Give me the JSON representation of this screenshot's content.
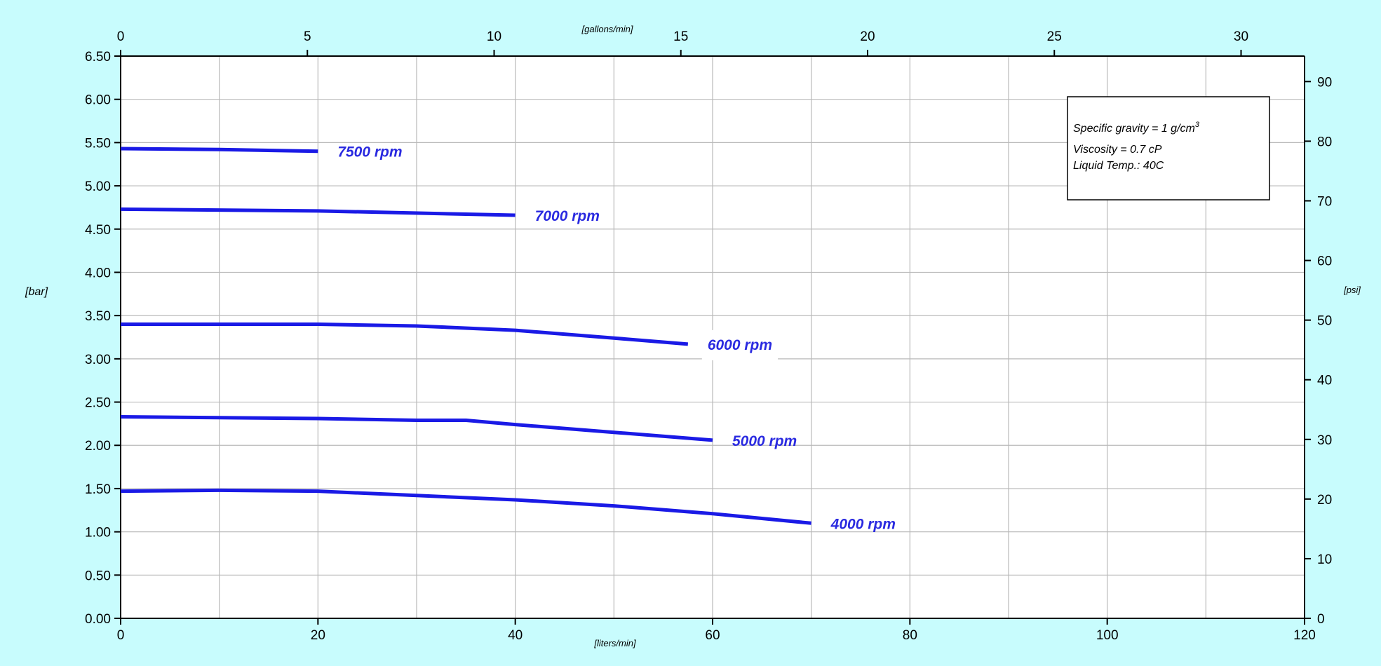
{
  "chart_data": {
    "type": "line",
    "title": "",
    "xlabel": "[liters/min]",
    "x2label": "[gallons/min]",
    "ylabel": "[bar]",
    "y2label": "[psi]",
    "xlim": [
      0,
      120
    ],
    "ylim": [
      0,
      6.5
    ],
    "x2lim": [
      0,
      31.7
    ],
    "y2lim": [
      0,
      94.27
    ],
    "grid": true,
    "x_ticks": [
      "0",
      "20",
      "40",
      "60",
      "80",
      "100",
      "120"
    ],
    "y_ticks": [
      "0.00",
      "0.50",
      "1.00",
      "1.50",
      "2.00",
      "2.50",
      "3.00",
      "3.50",
      "4.00",
      "4.50",
      "5.00",
      "5.50",
      "6.00",
      "6.50"
    ],
    "x2_ticks": [
      "0",
      "5",
      "10",
      "15",
      "20",
      "25",
      "30"
    ],
    "y2_ticks": [
      "0",
      "10",
      "20",
      "30",
      "40",
      "50",
      "60",
      "70",
      "80",
      "90"
    ],
    "series": [
      {
        "name": "7500 rpm",
        "x": [
          0,
          10,
          20
        ],
        "y": [
          5.43,
          5.42,
          5.4
        ]
      },
      {
        "name": "7000 rpm",
        "x": [
          0,
          20,
          40
        ],
        "y": [
          4.73,
          4.71,
          4.66
        ]
      },
      {
        "name": "6000 rpm",
        "x": [
          0,
          10,
          20,
          30,
          40,
          50,
          57.5
        ],
        "y": [
          3.4,
          3.4,
          3.4,
          3.38,
          3.33,
          3.24,
          3.17
        ]
      },
      {
        "name": "5000 rpm",
        "x": [
          0,
          10,
          20,
          30,
          35,
          40,
          50,
          60
        ],
        "y": [
          2.33,
          2.32,
          2.31,
          2.29,
          2.29,
          2.24,
          2.15,
          2.06
        ]
      },
      {
        "name": "4000 rpm",
        "x": [
          0,
          10,
          20,
          30,
          40,
          50,
          60,
          70
        ],
        "y": [
          1.47,
          1.48,
          1.47,
          1.42,
          1.37,
          1.3,
          1.21,
          1.1
        ]
      }
    ],
    "annotation": {
      "lines": [
        "Specific gravity = 1 g/cm",
        "Viscosity = 0.7 cP",
        "Liquid Temp.: 40C"
      ],
      "superscript": "3"
    },
    "line_color": "#1a1ae6"
  }
}
